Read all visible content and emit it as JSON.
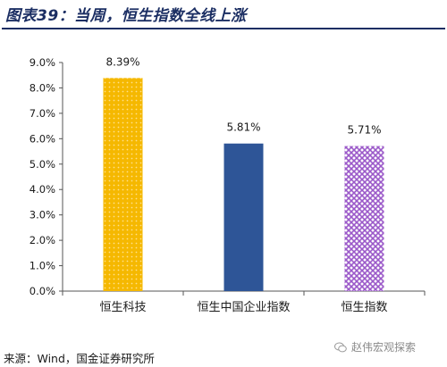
{
  "header": {
    "title": "图表39：当周，恒生指数全线上涨"
  },
  "footer": {
    "source": "来源：Wind，国金证券研究所"
  },
  "watermark": {
    "text": "赵伟宏观探索",
    "icon": "wechat-icon"
  },
  "chart_data": {
    "type": "bar",
    "categories": [
      "恒生科技",
      "恒生中国企业指数",
      "恒生指数"
    ],
    "values": [
      8.39,
      5.81,
      5.71
    ],
    "value_labels": [
      "8.39%",
      "5.81%",
      "5.71%"
    ],
    "ylim": [
      0,
      9
    ],
    "yticks": [
      0,
      1,
      2,
      3,
      4,
      5,
      6,
      7,
      8,
      9
    ],
    "ytick_labels": [
      "0.0%",
      "1.0%",
      "2.0%",
      "3.0%",
      "4.0%",
      "5.0%",
      "6.0%",
      "7.0%",
      "8.0%",
      "9.0%"
    ],
    "colors": [
      "#f5b800",
      "#2e5597",
      "#9b59c9"
    ],
    "patterns": [
      "dots",
      "solid",
      "crosshatch"
    ],
    "grid": false,
    "legend": "none"
  }
}
